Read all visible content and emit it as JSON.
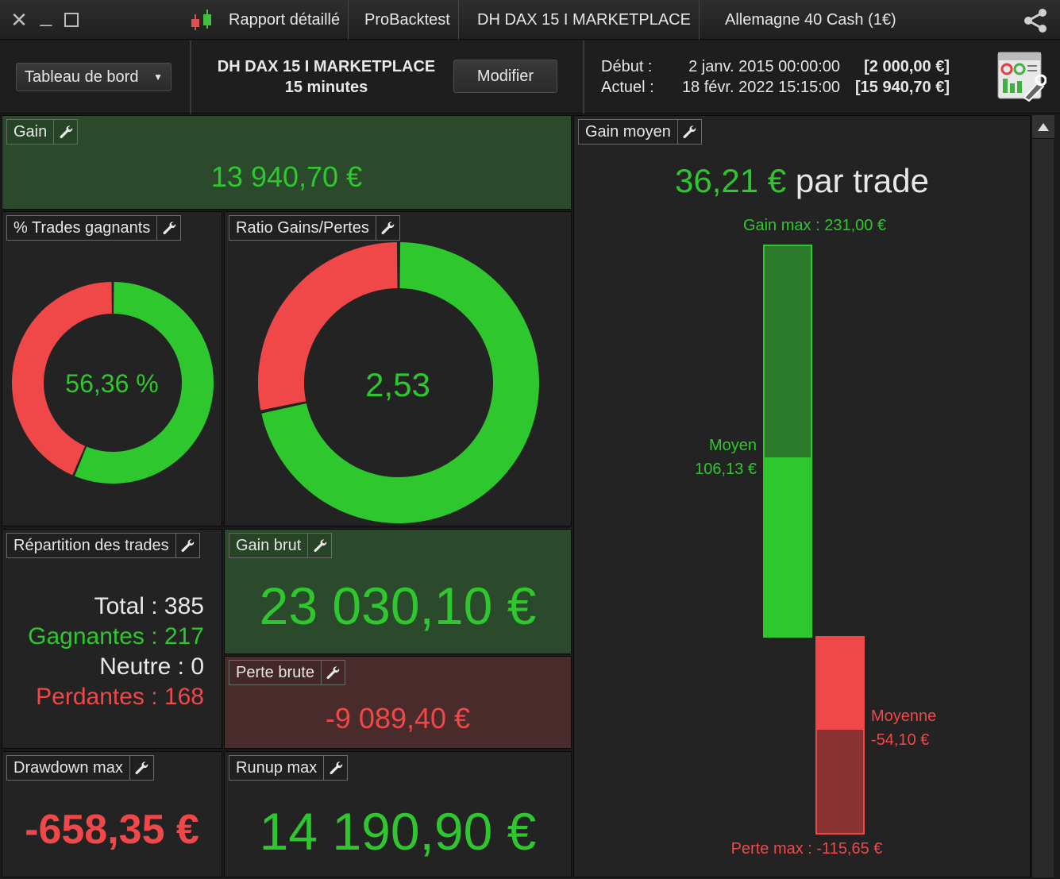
{
  "window": {
    "tab_report": "Rapport détaillé",
    "tab_probacktest": "ProBacktest",
    "tab_system": "DH DAX 15 I MARKETPLACE",
    "tab_instrument": "Allemagne 40 Cash (1€)"
  },
  "header": {
    "dashboard_select": "Tableau de bord",
    "system_name": "DH DAX 15 I MARKETPLACE",
    "timeframe": "15 minutes",
    "modify_button": "Modifier",
    "start_label": "Début :",
    "start_date": "2 janv. 2015 00:00:00",
    "start_capital": "[2 000,00 €]",
    "current_label": "Actuel :",
    "current_date": "18 févr. 2022 15:15:00",
    "current_capital": "[15 940,70 €]"
  },
  "panels": {
    "gain": {
      "title": "Gain",
      "value": "13 940,70 €"
    },
    "win_pct": {
      "title": "% Trades gagnants",
      "value": "56,36 %",
      "fraction_green": 0.5636
    },
    "ratio": {
      "title": "Ratio Gains/Pertes",
      "value": "2,53",
      "fraction_green": 0.7168
    },
    "avg_gain": {
      "title": "Gain moyen",
      "value": "36,21 €",
      "suffix": "par trade",
      "max_gain_label": "Gain max : 231,00 €",
      "avg_win_label": "Moyen",
      "avg_win_value": "106,13 €",
      "avg_loss_label": "Moyenne",
      "avg_loss_value": "-54,10 €",
      "max_loss_label": "Perte max : -115,65 €",
      "max_gain": 231.0,
      "avg_win": 106.13,
      "avg_loss": -54.1,
      "max_loss": -115.65
    },
    "distribution": {
      "title": "Répartition des trades",
      "total": "Total : 385",
      "winners": "Gagnantes : 217",
      "neutral": "Neutre : 0",
      "losers": "Perdantes : 168"
    },
    "gross_gain": {
      "title": "Gain brut",
      "value": "23 030,10 €"
    },
    "gross_loss": {
      "title": "Perte brute",
      "value": "-9 089,40 €"
    },
    "drawdown": {
      "title": "Drawdown max",
      "value": "-658,35 €"
    },
    "runup": {
      "title": "Runup max",
      "value": "14 190,90 €"
    }
  },
  "colors": {
    "green": "#2ec82e",
    "red": "#f04848",
    "dark_green": "#2a7a2a",
    "dark_red": "#8a3232"
  }
}
